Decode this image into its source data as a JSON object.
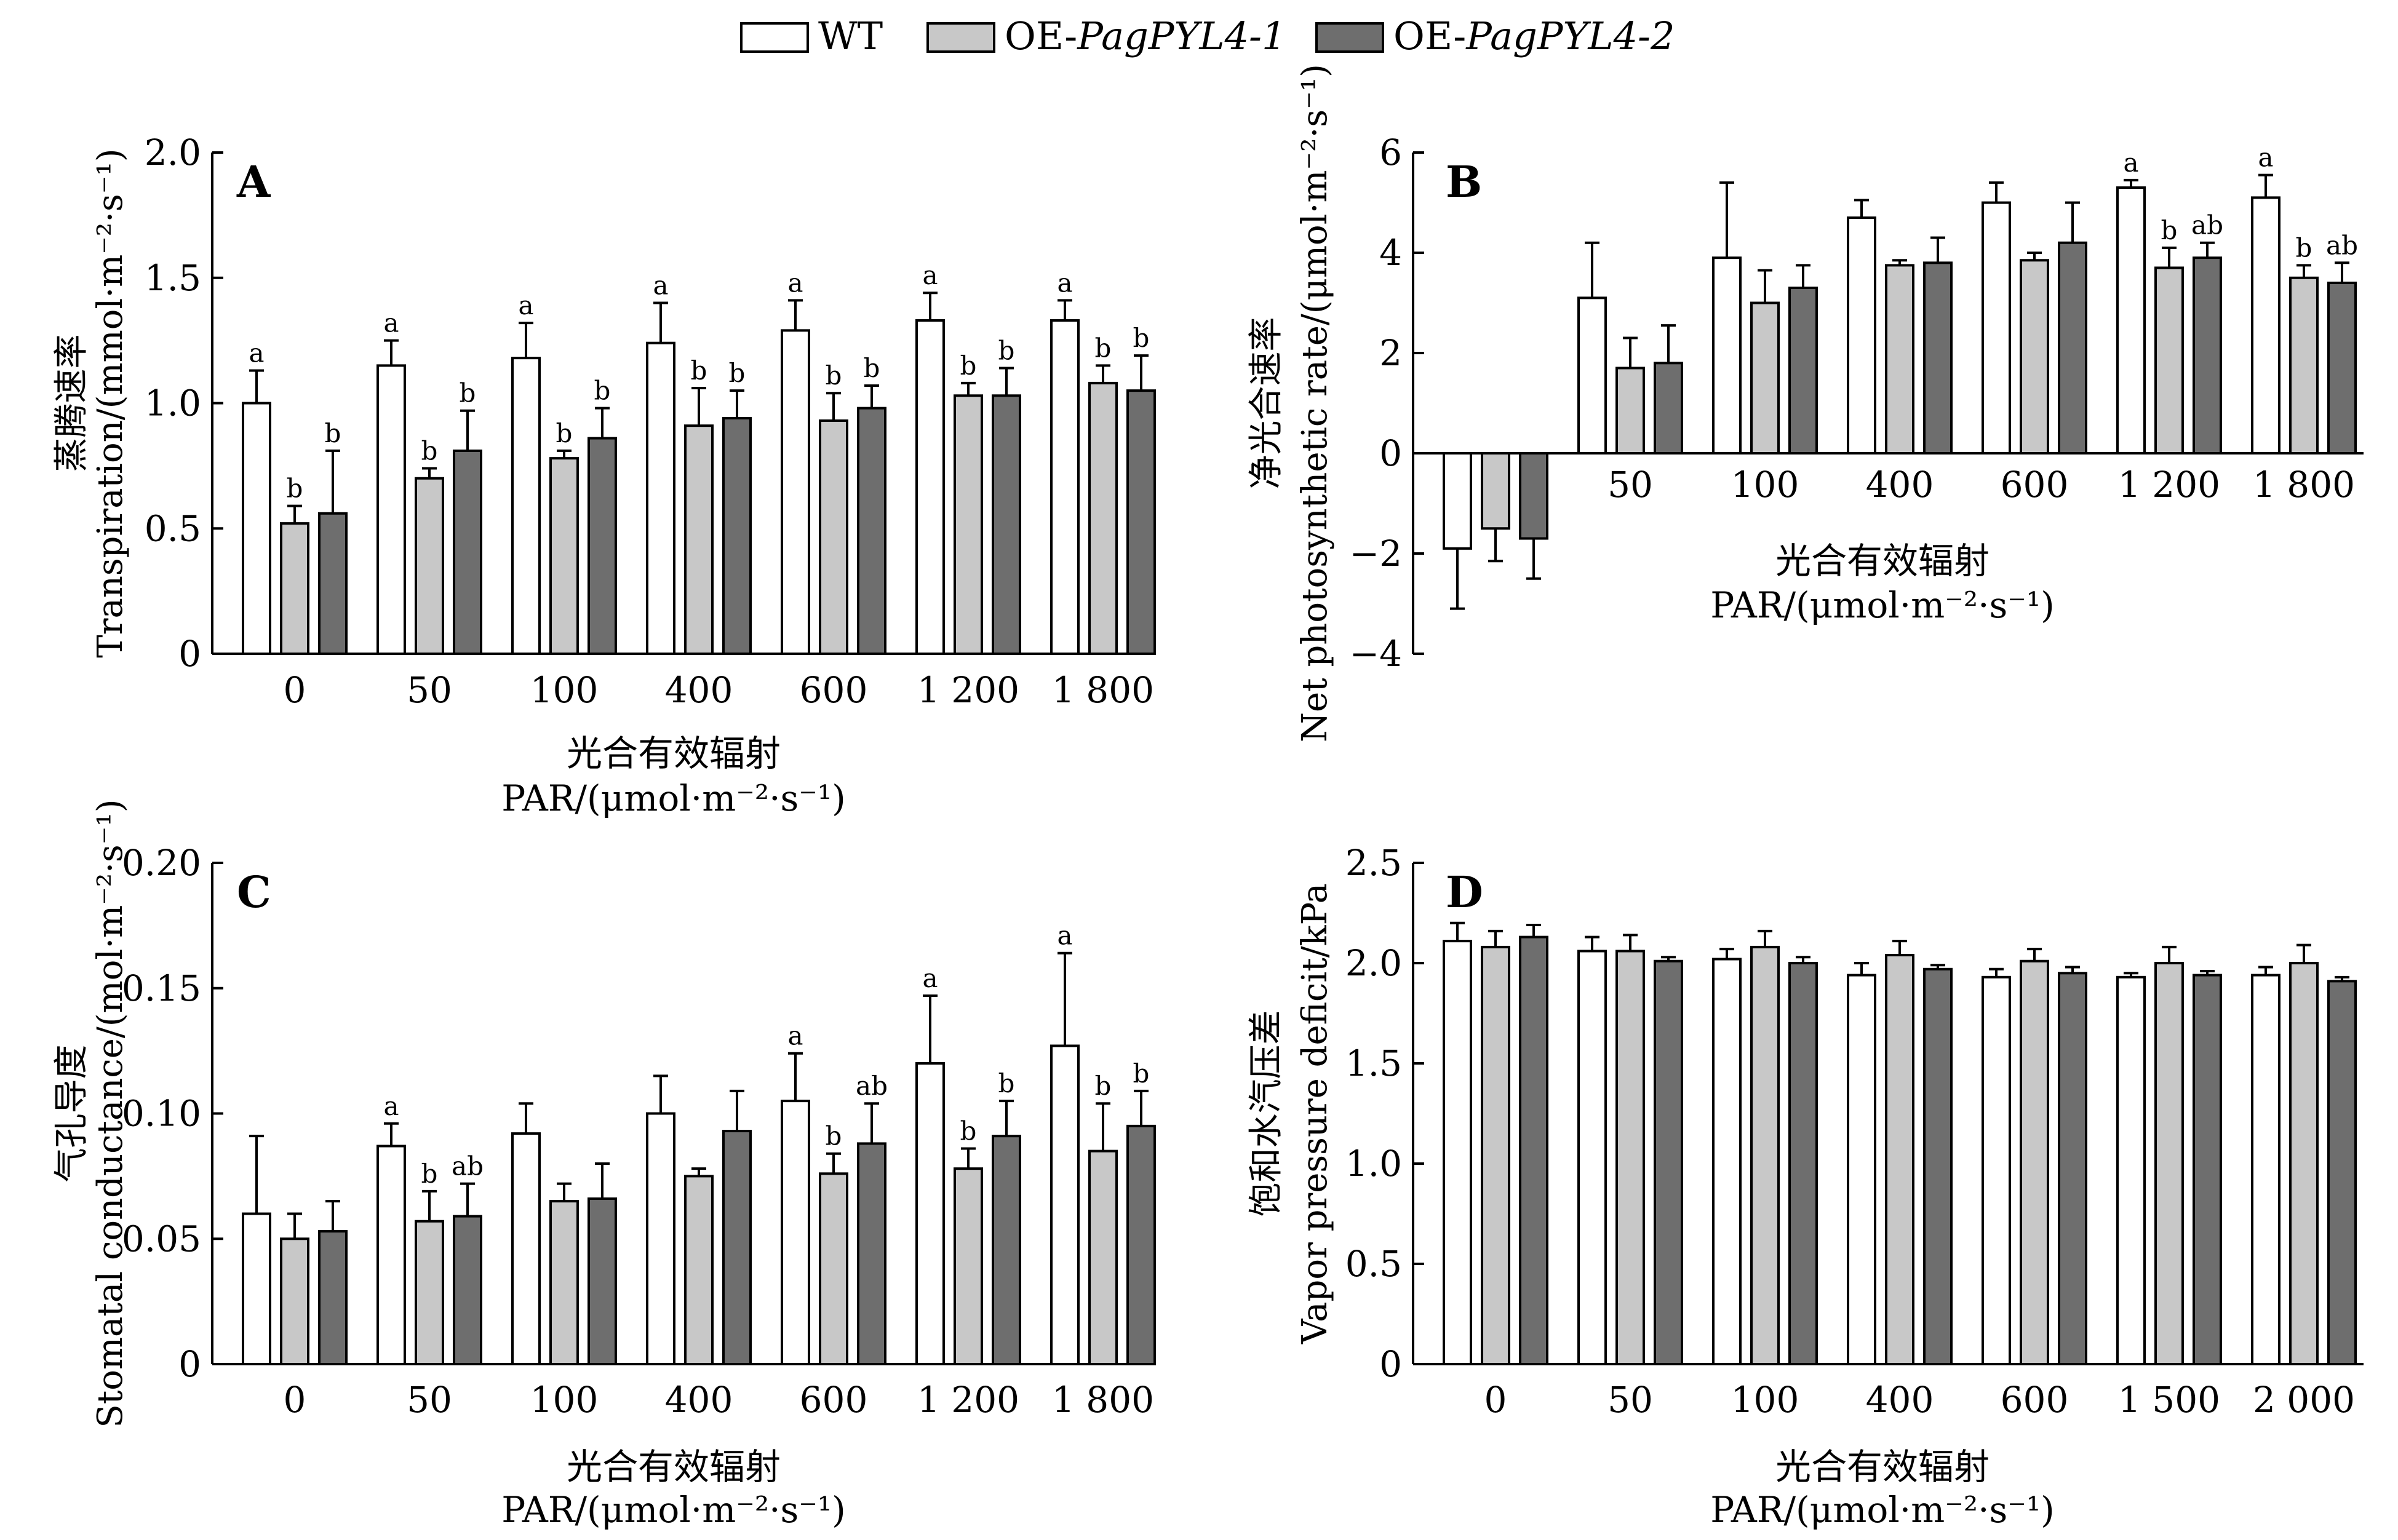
{
  "legend": [
    {
      "prefix": "WT",
      "italic": ""
    },
    {
      "prefix": "OE-",
      "italic": "PagPYL4-1"
    },
    {
      "prefix": "OE-",
      "italic": "PagPYL4-2"
    }
  ],
  "colors": {
    "series": [
      "#ffffff",
      "#c8c8c8",
      "#6e6e6e"
    ],
    "stroke": "#000000"
  },
  "chart_data": [
    {
      "type": "bar",
      "panel": "A",
      "xlabel_cn": "光合有效辐射",
      "xlabel_en": "PAR/(μmol·m⁻²·s⁻¹)",
      "ylabel_cn": "蒸腾速率",
      "ylabel_en": "Transpiration/(mmol·m⁻²·s⁻¹)",
      "ylim": [
        0,
        2.0
      ],
      "yticks": [
        0,
        0.5,
        1.0,
        1.5,
        2.0
      ],
      "ytick_labels": [
        "0",
        "0.5",
        "1.0",
        "1.5",
        "2.0"
      ],
      "categories": [
        "0",
        "50",
        "100",
        "400",
        "600",
        "1 200",
        "1 800"
      ],
      "series": [
        {
          "name": "WT",
          "values": [
            1.0,
            1.15,
            1.18,
            1.24,
            1.29,
            1.33,
            1.33
          ],
          "errors": [
            0.13,
            0.1,
            0.14,
            0.16,
            0.12,
            0.11,
            0.08
          ],
          "letters": [
            "a",
            "a",
            "a",
            "a",
            "a",
            "a",
            "a"
          ]
        },
        {
          "name": "OE-PagPYL4-1",
          "values": [
            0.52,
            0.7,
            0.78,
            0.91,
            0.93,
            1.03,
            1.08
          ],
          "errors": [
            0.07,
            0.04,
            0.03,
            0.15,
            0.11,
            0.05,
            0.07
          ],
          "letters": [
            "b",
            "b",
            "b",
            "b",
            "b",
            "b",
            "b"
          ]
        },
        {
          "name": "OE-PagPYL4-2",
          "values": [
            0.56,
            0.81,
            0.86,
            0.94,
            0.98,
            1.03,
            1.05
          ],
          "errors": [
            0.25,
            0.16,
            0.12,
            0.11,
            0.09,
            0.11,
            0.14
          ],
          "letters": [
            "b",
            "b",
            "b",
            "b",
            "b",
            "b",
            "b"
          ]
        }
      ]
    },
    {
      "type": "bar",
      "panel": "B",
      "xlabel_cn": "光合有效辐射",
      "xlabel_en": "PAR/(μmol·m⁻²·s⁻¹)",
      "ylabel_cn": "净光合速率",
      "ylabel_en": "Net photosynthetic rate/(μmol·m⁻²·s⁻¹)",
      "ylim": [
        -4,
        6
      ],
      "yticks": [
        -4,
        -2,
        0,
        2,
        4,
        6
      ],
      "ytick_labels": [
        "−4",
        "−2",
        "0",
        "2",
        "4",
        "6"
      ],
      "categories": [
        "0",
        "50",
        "100",
        "400",
        "600",
        "1 200",
        "1 800"
      ],
      "series": [
        {
          "name": "WT",
          "values": [
            -1.9,
            3.1,
            3.9,
            4.7,
            5.0,
            5.3,
            5.1
          ],
          "errors": [
            1.2,
            1.1,
            1.5,
            0.35,
            0.4,
            0.15,
            0.45
          ],
          "letters": [
            "",
            "",
            "",
            "",
            "",
            "a",
            "a"
          ]
        },
        {
          "name": "OE-PagPYL4-1",
          "values": [
            -1.5,
            1.7,
            3.0,
            3.75,
            3.85,
            3.7,
            3.5
          ],
          "errors": [
            0.65,
            0.6,
            0.65,
            0.1,
            0.15,
            0.4,
            0.25
          ],
          "letters": [
            "",
            "",
            "",
            "",
            "",
            "b",
            "b"
          ]
        },
        {
          "name": "OE-PagPYL4-2",
          "values": [
            -1.7,
            1.8,
            3.3,
            3.8,
            4.2,
            3.9,
            3.4
          ],
          "errors": [
            0.8,
            0.75,
            0.45,
            0.5,
            0.8,
            0.3,
            0.4
          ],
          "letters": [
            "",
            "",
            "",
            "",
            "",
            "ab",
            "ab"
          ]
        }
      ]
    },
    {
      "type": "bar",
      "panel": "C",
      "xlabel_cn": "光合有效辐射",
      "xlabel_en": "PAR/(μmol·m⁻²·s⁻¹)",
      "ylabel_cn": "气孔导度",
      "ylabel_en": "Stomatal conductance/(mol·m⁻²·s⁻¹)",
      "ylim": [
        0,
        0.2
      ],
      "yticks": [
        0,
        0.05,
        0.1,
        0.15,
        0.2
      ],
      "ytick_labels": [
        "0",
        "0.05",
        "0.10",
        "0.15",
        "0.20"
      ],
      "categories": [
        "0",
        "50",
        "100",
        "400",
        "600",
        "1 200",
        "1 800"
      ],
      "series": [
        {
          "name": "WT",
          "values": [
            0.06,
            0.087,
            0.092,
            0.1,
            0.105,
            0.12,
            0.127
          ],
          "errors": [
            0.031,
            0.009,
            0.012,
            0.015,
            0.019,
            0.027,
            0.037
          ],
          "letters": [
            "",
            "a",
            "",
            "",
            "a",
            "a",
            "a"
          ]
        },
        {
          "name": "OE-PagPYL4-1",
          "values": [
            0.05,
            0.057,
            0.065,
            0.075,
            0.076,
            0.078,
            0.085
          ],
          "errors": [
            0.01,
            0.012,
            0.007,
            0.003,
            0.008,
            0.008,
            0.019
          ],
          "letters": [
            "",
            "b",
            "",
            "",
            "b",
            "b",
            "b"
          ]
        },
        {
          "name": "OE-PagPYL4-2",
          "values": [
            0.053,
            0.059,
            0.066,
            0.093,
            0.088,
            0.091,
            0.095
          ],
          "errors": [
            0.012,
            0.013,
            0.014,
            0.016,
            0.016,
            0.014,
            0.014
          ],
          "letters": [
            "",
            "ab",
            "",
            "",
            "ab",
            "b",
            "b"
          ]
        }
      ]
    },
    {
      "type": "bar",
      "panel": "D",
      "xlabel_cn": "光合有效辐射",
      "xlabel_en": "PAR/(μmol·m⁻²·s⁻¹)",
      "ylabel_cn": "饱和水汽压差",
      "ylabel_en": "Vapor pressure deficit/kPa",
      "ylim": [
        0,
        2.5
      ],
      "yticks": [
        0,
        0.5,
        1.0,
        1.5,
        2.0,
        2.5
      ],
      "ytick_labels": [
        "0",
        "0.5",
        "1.0",
        "1.5",
        "2.0",
        "2.5"
      ],
      "categories": [
        "0",
        "50",
        "100",
        "400",
        "600",
        "1 500",
        "2 000"
      ],
      "series": [
        {
          "name": "WT",
          "values": [
            2.11,
            2.06,
            2.02,
            1.94,
            1.93,
            1.93,
            1.94
          ],
          "errors": [
            0.09,
            0.07,
            0.05,
            0.06,
            0.04,
            0.02,
            0.04
          ],
          "letters": [
            "",
            "",
            "",
            "",
            "",
            "",
            ""
          ]
        },
        {
          "name": "OE-PagPYL4-1",
          "values": [
            2.08,
            2.06,
            2.08,
            2.04,
            2.01,
            2.0,
            2.0
          ],
          "errors": [
            0.08,
            0.08,
            0.08,
            0.07,
            0.06,
            0.08,
            0.09
          ],
          "letters": [
            "",
            "",
            "",
            "",
            "",
            "",
            ""
          ]
        },
        {
          "name": "OE-PagPYL4-2",
          "values": [
            2.13,
            2.01,
            2.0,
            1.97,
            1.95,
            1.94,
            1.91
          ],
          "errors": [
            0.06,
            0.02,
            0.03,
            0.02,
            0.03,
            0.02,
            0.02
          ],
          "letters": [
            "",
            "",
            "",
            "",
            "",
            "",
            ""
          ]
        }
      ]
    }
  ]
}
